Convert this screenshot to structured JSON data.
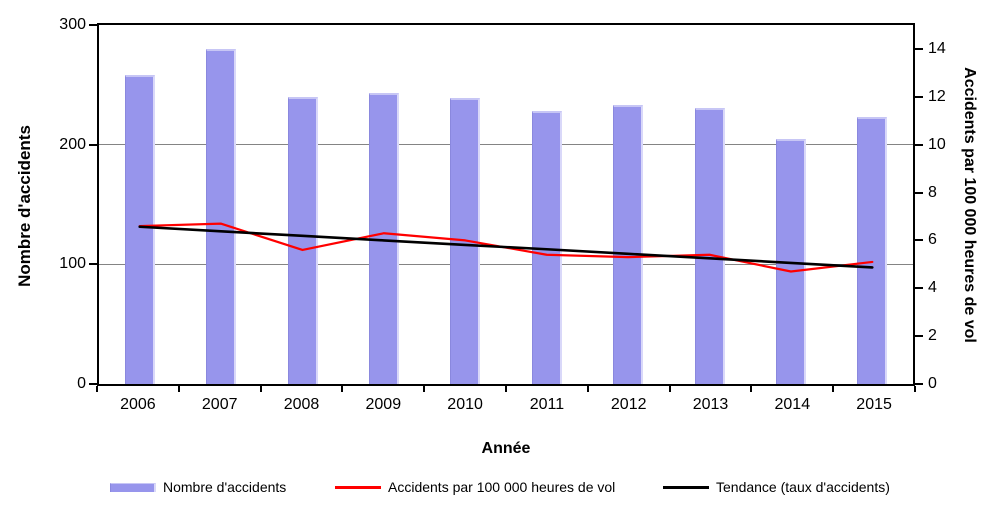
{
  "chart_data": {
    "type": "bar",
    "title": "",
    "categories": [
      "2006",
      "2007",
      "2008",
      "2009",
      "2010",
      "2011",
      "2012",
      "2013",
      "2014",
      "2015"
    ],
    "series": [
      {
        "name": "Nombre d'accidents",
        "type": "bar",
        "axis": "left",
        "color": "#9795ec",
        "values": [
          258,
          280,
          240,
          243,
          239,
          228,
          233,
          231,
          205,
          223
        ]
      },
      {
        "name": "Accidents par 100 000 heures de vol",
        "type": "line",
        "axis": "right",
        "color": "#ff0000",
        "values": [
          6.6,
          6.7,
          5.6,
          6.3,
          6.0,
          5.4,
          5.3,
          5.4,
          4.7,
          5.1
        ]
      },
      {
        "name": "Tendance (taux d'accidents)",
        "type": "line",
        "axis": "right",
        "color": "#000000",
        "values": [
          6.57,
          6.38,
          6.19,
          6.0,
          5.81,
          5.63,
          5.44,
          5.25,
          5.06,
          4.87
        ]
      }
    ],
    "xlabel": "Année",
    "ylabel_left": "Nombre d'accidents",
    "ylabel_right": "Accidents par 100 000 heures de vol",
    "ylim_left": [
      0,
      300
    ],
    "yticks_left": [
      0,
      100,
      200,
      300
    ],
    "ylim_right": [
      0,
      15
    ],
    "yticks_right": [
      0,
      2,
      4,
      6,
      8,
      10,
      12,
      14
    ],
    "gridlines_left": [
      100,
      200
    ],
    "grid": "horizontal",
    "legend_position": "bottom",
    "colors": {
      "bar_fill": "#9795ec",
      "rate_line": "#ff0000",
      "trend_line": "#000000",
      "gridline": "#848484",
      "axis": "#000000"
    }
  }
}
